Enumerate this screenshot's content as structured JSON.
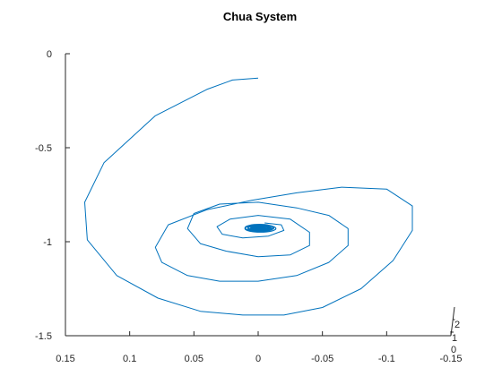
{
  "chart_data": {
    "type": "line",
    "title": "Chua System",
    "xlabel": "",
    "ylabel": "",
    "xlim": [
      0.15,
      -0.15
    ],
    "ylim": [
      -1.5,
      0
    ],
    "x_reversed": true,
    "grid": false,
    "x_ticks": [
      0.15,
      0.1,
      0.05,
      0,
      -0.05,
      -0.1,
      -0.15
    ],
    "x_tick_labels": [
      "0.15",
      "0.1",
      "0.05",
      "0",
      "-0.05",
      "-0.1",
      "-0.15"
    ],
    "y_ticks": [
      0,
      -0.5,
      -1,
      -1.5
    ],
    "y_tick_labels": [
      "0",
      "-0.5",
      "-1",
      "-1.5"
    ],
    "z_tick_labels": [
      "2",
      "1",
      "0"
    ],
    "color": "#0072BD",
    "series": [
      {
        "x": [
          0.0,
          0.02,
          0.04,
          0.08,
          0.12,
          0.135,
          0.133,
          0.11,
          0.078,
          0.045,
          0.012,
          -0.02,
          -0.05,
          -0.08,
          -0.105,
          -0.12,
          -0.12,
          -0.1,
          -0.065,
          -0.03,
          0.005,
          0.04,
          0.07,
          0.08,
          0.075,
          0.055,
          0.03,
          0.0,
          -0.03,
          -0.055,
          -0.07,
          -0.07,
          -0.055,
          -0.03,
          0.0,
          0.03,
          0.05,
          0.055,
          0.045,
          0.025,
          0.0,
          -0.025,
          -0.04,
          -0.04,
          -0.025,
          0.0,
          0.022,
          0.032,
          0.028,
          0.012,
          -0.008,
          -0.02,
          -0.018,
          -0.005
        ],
        "y": [
          -0.13,
          -0.14,
          -0.19,
          -0.33,
          -0.58,
          -0.79,
          -0.99,
          -1.18,
          -1.3,
          -1.37,
          -1.39,
          -1.39,
          -1.35,
          -1.25,
          -1.1,
          -0.94,
          -0.81,
          -0.72,
          -0.71,
          -0.74,
          -0.78,
          -0.83,
          -0.91,
          -1.03,
          -1.11,
          -1.18,
          -1.21,
          -1.21,
          -1.18,
          -1.11,
          -1.02,
          -0.93,
          -0.86,
          -0.82,
          -0.79,
          -0.8,
          -0.85,
          -0.93,
          -1.01,
          -1.05,
          -1.08,
          -1.07,
          -1.02,
          -0.95,
          -0.88,
          -0.86,
          -0.88,
          -0.92,
          -0.96,
          -0.98,
          -0.97,
          -0.94,
          -0.91,
          -0.9
        ]
      }
    ],
    "attractor_core": {
      "center_x": -0.001,
      "center_y": -0.93,
      "spread_x": 0.012,
      "spread_y": 0.035
    }
  }
}
